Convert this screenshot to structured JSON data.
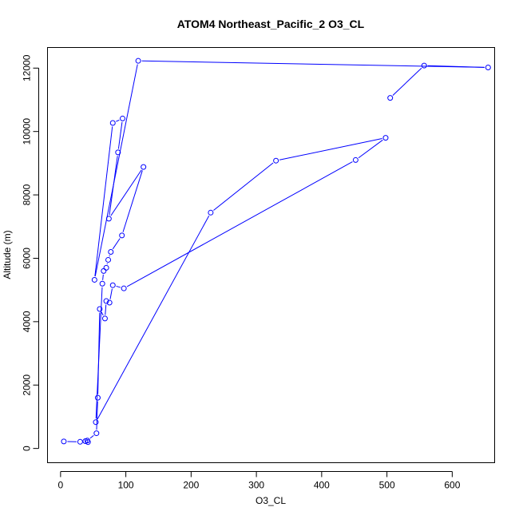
{
  "chart_data": {
    "type": "line",
    "title": "ATOM4 Northeast_Pacific_2 O3_CL",
    "xlabel": "O3_CL",
    "ylabel": "Altitude (m)",
    "xlim": [
      -20,
      665
    ],
    "ylim": [
      -450,
      12650
    ],
    "xticks": [
      0,
      100,
      200,
      300,
      400,
      500,
      600
    ],
    "yticks": [
      0,
      2000,
      4000,
      6000,
      8000,
      10000,
      12000
    ],
    "grid": false,
    "legend": "none",
    "color": "#0000ff",
    "series": [
      {
        "points": [
          {
            "x": 5,
            "y": 220
          },
          {
            "x": 30,
            "y": 210
          },
          {
            "x": 38,
            "y": 230
          },
          {
            "x": 42,
            "y": 200
          },
          {
            "x": 41,
            "y": 250
          },
          {
            "x": 55,
            "y": 480
          },
          {
            "x": 57,
            "y": 1600
          },
          {
            "x": 60,
            "y": 4400
          },
          {
            "x": 68,
            "y": 4100
          },
          {
            "x": 70,
            "y": 4650
          },
          {
            "x": 75,
            "y": 4600
          },
          {
            "x": 80,
            "y": 5150
          },
          {
            "x": 97,
            "y": 5050
          },
          {
            "x": 452,
            "y": 9100
          },
          {
            "x": 498,
            "y": 9800
          },
          {
            "x": 330,
            "y": 9080
          },
          {
            "x": 230,
            "y": 7440
          },
          {
            "x": 54,
            "y": 830
          },
          {
            "x": 64,
            "y": 5200
          },
          {
            "x": 66,
            "y": 5600
          },
          {
            "x": 70,
            "y": 5700
          },
          {
            "x": 73,
            "y": 5950
          },
          {
            "x": 77,
            "y": 6200
          },
          {
            "x": 94,
            "y": 6720
          },
          {
            "x": 127,
            "y": 8880
          },
          {
            "x": 74,
            "y": 7250
          },
          {
            "x": 88,
            "y": 9340
          },
          {
            "x": 95,
            "y": 10410
          },
          {
            "x": 80,
            "y": 10270
          },
          {
            "x": 52,
            "y": 5320
          },
          {
            "x": 119,
            "y": 12230
          },
          {
            "x": 655,
            "y": 12020
          },
          {
            "x": 557,
            "y": 12080
          },
          {
            "x": 505,
            "y": 11060
          }
        ]
      }
    ]
  }
}
